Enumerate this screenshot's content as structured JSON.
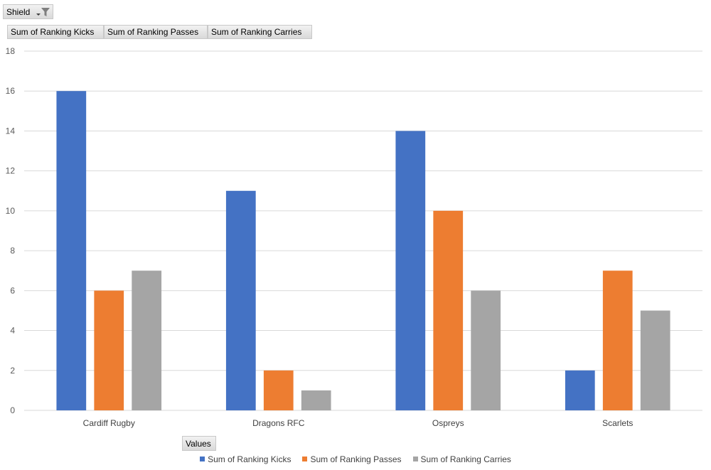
{
  "filter_field": {
    "label": "Shield"
  },
  "value_fields": [
    "Sum of Ranking Kicks",
    "Sum of Ranking Passes",
    "Sum of Ranking Carries"
  ],
  "values_button": {
    "label": "Values"
  },
  "chart_data": {
    "type": "bar",
    "categories": [
      "Cardiff Rugby",
      "Dragons RFC",
      "Ospreys",
      "Scarlets"
    ],
    "series": [
      {
        "name": "Sum of Ranking Kicks",
        "color": "#4472C4",
        "values": [
          16,
          11,
          14,
          2
        ]
      },
      {
        "name": "Sum of Ranking Passes",
        "color": "#ED7D31",
        "values": [
          6,
          2,
          10,
          7
        ]
      },
      {
        "name": "Sum of Ranking Carries",
        "color": "#A5A5A5",
        "values": [
          7,
          1,
          6,
          5
        ]
      }
    ],
    "ylim": [
      0,
      18
    ],
    "yticks": [
      0,
      2,
      4,
      6,
      8,
      10,
      12,
      14,
      16,
      18
    ],
    "grid": true,
    "legend": "bottom"
  }
}
